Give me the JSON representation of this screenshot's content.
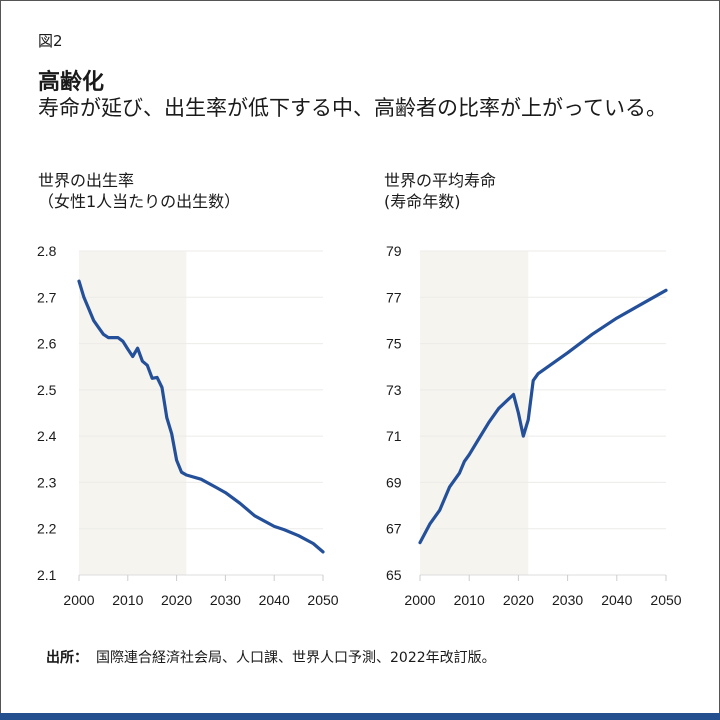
{
  "header": {
    "figure_label": "図2",
    "title": "高齢化",
    "subtitle": "寿命が延び、出生率が低下する中、高齢者の比率が上がっている。"
  },
  "colors": {
    "line": "#24509a",
    "shade": "#f6f4ef",
    "grid": "#ecebe8",
    "bar": "#24508f"
  },
  "chart_data": [
    {
      "type": "line",
      "title": "世界の出生率\n（女性1人当たりの出生数）",
      "xlim": [
        2000,
        2050
      ],
      "ylim": [
        2.1,
        2.8
      ],
      "xticks": [
        2000,
        2010,
        2020,
        2030,
        2040,
        2050
      ],
      "yticks": [
        2.1,
        2.2,
        2.3,
        2.4,
        2.5,
        2.6,
        2.7,
        2.8
      ],
      "ytick_labels": [
        "2.1",
        "2.2",
        "2.3",
        "2.4",
        "2.5",
        "2.6",
        "2.7",
        "2.8"
      ],
      "grid": true,
      "shaded_range": [
        2000,
        2022
      ],
      "x": [
        2000,
        2001,
        2002,
        2003,
        2004,
        2005,
        2006,
        2007,
        2008,
        2009,
        2010,
        2011,
        2012,
        2013,
        2014,
        2015,
        2016,
        2017,
        2018,
        2019,
        2020,
        2021,
        2022,
        2025,
        2028,
        2030,
        2033,
        2036,
        2040,
        2042,
        2045,
        2048,
        2050
      ],
      "y": [
        2.735,
        2.7,
        2.675,
        2.65,
        2.635,
        2.62,
        2.613,
        2.613,
        2.613,
        2.605,
        2.588,
        2.572,
        2.59,
        2.562,
        2.553,
        2.525,
        2.527,
        2.505,
        2.44,
        2.405,
        2.348,
        2.322,
        2.316,
        2.307,
        2.29,
        2.278,
        2.255,
        2.228,
        2.205,
        2.198,
        2.185,
        2.168,
        2.15
      ]
    },
    {
      "type": "line",
      "title": "世界の平均寿命\n(寿命年数)",
      "xlim": [
        2000,
        2050
      ],
      "ylim": [
        65,
        79
      ],
      "xticks": [
        2000,
        2010,
        2020,
        2030,
        2040,
        2050
      ],
      "yticks": [
        65,
        67,
        69,
        71,
        73,
        75,
        77,
        79
      ],
      "ytick_labels": [
        "65",
        "67",
        "69",
        "71",
        "73",
        "75",
        "77",
        "79"
      ],
      "grid": true,
      "shaded_range": [
        2000,
        2022
      ],
      "x": [
        2000,
        2002,
        2004,
        2006,
        2008,
        2009,
        2010,
        2012,
        2014,
        2016,
        2018,
        2019,
        2020,
        2021,
        2022,
        2023,
        2024,
        2030,
        2035,
        2040,
        2045,
        2050
      ],
      "y": [
        66.4,
        67.2,
        67.8,
        68.8,
        69.4,
        69.9,
        70.2,
        70.9,
        71.6,
        72.2,
        72.6,
        72.8,
        72.0,
        71.0,
        71.7,
        73.4,
        73.7,
        74.6,
        75.4,
        76.1,
        76.7,
        77.3
      ]
    }
  ],
  "source": {
    "label": "出所：",
    "text": "国際連合経済社会局、人口課、世界人口予測、2022年改訂版。"
  }
}
